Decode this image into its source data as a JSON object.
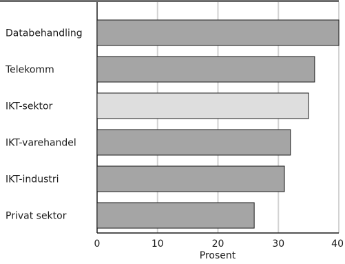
{
  "chart_data": {
    "type": "bar",
    "orientation": "horizontal",
    "categories": [
      "Databehandling",
      "Telekomm",
      "IKT-sektor",
      "IKT-varehandel",
      "IKT-industri",
      "Privat sektor"
    ],
    "values": [
      40,
      36,
      35,
      32,
      31,
      26
    ],
    "highlight_category": "IKT-sektor",
    "xlabel": "Prosent",
    "ylabel": "",
    "xlim": [
      0,
      40
    ],
    "x_ticks": [
      0,
      10,
      20,
      30,
      40
    ],
    "grid": "vertical",
    "colors": {
      "bar": "#a5a5a5",
      "highlight": "#dedede",
      "bar_stroke": "#1a1a1a",
      "grid": "#d2d2d2",
      "frame": "#1a1a1a"
    }
  }
}
